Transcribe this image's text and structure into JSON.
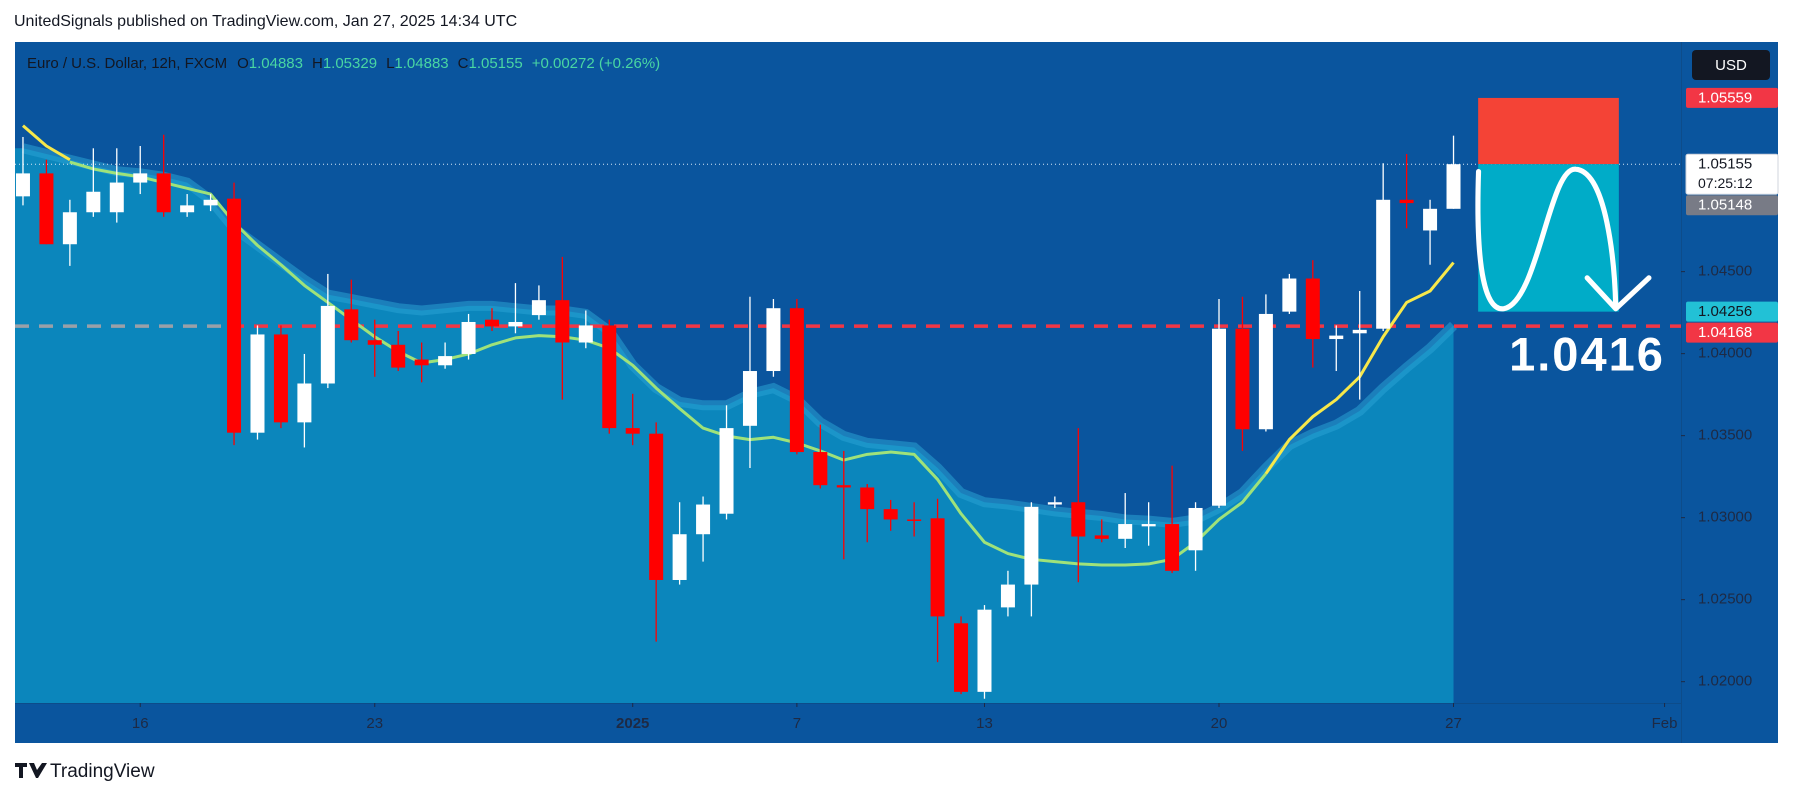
{
  "header": {
    "title": "UnitedSignals published on TradingView.com, Jan 27, 2025 14:34 UTC"
  },
  "footer": {
    "brand": "TradingView"
  },
  "chart_data": {
    "type": "candlestick",
    "currency_button": "USD",
    "legend": {
      "symbol": "Euro / U.S. Dollar, 12h, FXCM",
      "letters": [
        "O",
        "H",
        "L",
        "C"
      ],
      "change": "+0.00272 (+0.26%)"
    },
    "xlim": [
      -0.34,
      70.7
    ],
    "xticks": [
      {
        "value": 5,
        "label": "16"
      },
      {
        "value": 15,
        "label": "23"
      },
      {
        "value": 26,
        "label": "2025"
      },
      {
        "value": 33,
        "label": "7"
      },
      {
        "value": 41,
        "label": "13"
      },
      {
        "value": 51,
        "label": "20"
      },
      {
        "value": 61,
        "label": "27"
      },
      {
        "value": 70,
        "label": "Feb"
      }
    ],
    "ylim": [
      1.0187,
      1.059
    ],
    "yticks": [
      {
        "value": 1.02,
        "label": "1.02000"
      },
      {
        "value": 1.025,
        "label": "1.02500"
      },
      {
        "value": 1.03,
        "label": "1.03000"
      },
      {
        "value": 1.035,
        "label": "1.03500"
      },
      {
        "value": 1.04,
        "label": "1.04000"
      },
      {
        "value": 1.045,
        "label": "1.04500"
      }
    ],
    "up_color": "#ffffff",
    "down_color": "#ff0000",
    "ohlc": {
      "open": [
        1.04959,
        1.05099,
        1.04667,
        1.04862,
        1.04862,
        1.05043,
        1.05099,
        1.04862,
        1.04904,
        1.04945,
        1.03518,
        1.04117,
        1.03581,
        1.03818,
        1.0427,
        1.04082,
        1.04054,
        1.03964,
        1.03929,
        1.03998,
        1.04207,
        1.04166,
        1.04235,
        1.04326,
        1.04068,
        1.04172,
        1.03546,
        1.03512,
        1.0262,
        1.02899,
        1.03024,
        1.0356,
        1.03894,
        1.04277,
        1.034,
        1.03198,
        1.03184,
        1.03052,
        1.02989,
        1.02996,
        1.02356,
        1.01938,
        1.02453,
        1.02592,
        1.0308,
        1.03094,
        1.02892,
        1.02871,
        1.02947,
        1.02961,
        1.02801,
        1.03073,
        1.04152,
        1.03539,
        1.04256,
        1.04458,
        1.04089,
        1.04124,
        1.04152,
        1.04938,
        1.04751,
        1.04883
      ],
      "high": [
        1.05321,
        1.05182,
        1.04938,
        1.05252,
        1.05252,
        1.05266,
        1.05335,
        1.04973,
        1.04973,
        1.05043,
        1.04172,
        1.04172,
        1.03998,
        1.04486,
        1.04451,
        1.04207,
        1.04138,
        1.04068,
        1.04068,
        1.04242,
        1.04277,
        1.0443,
        1.04416,
        1.0459,
        1.04263,
        1.04207,
        1.03755,
        1.03581,
        1.03094,
        1.03129,
        1.03685,
        1.04347,
        1.04333,
        1.04333,
        1.03567,
        1.03407,
        1.03205,
        1.03108,
        1.03094,
        1.03115,
        1.02398,
        1.02467,
        1.02676,
        1.03094,
        1.03129,
        1.03546,
        1.02989,
        1.0315,
        1.03094,
        1.03317,
        1.03094,
        1.04333,
        1.04347,
        1.04361,
        1.04486,
        1.0457,
        1.04172,
        1.04382,
        1.05161,
        1.05217,
        1.04938,
        1.05329
      ],
      "low": [
        1.04904,
        1.04667,
        1.04535,
        1.04834,
        1.04799,
        1.04973,
        1.04834,
        1.04834,
        1.04869,
        1.03442,
        1.03476,
        1.03546,
        1.03428,
        1.0379,
        1.04068,
        1.03859,
        1.03894,
        1.03825,
        1.03908,
        1.03964,
        1.04138,
        1.04124,
        1.04207,
        1.0372,
        1.04033,
        1.03512,
        1.03442,
        1.02244,
        1.02592,
        1.02732,
        1.02989,
        1.03303,
        1.03859,
        1.03386,
        1.03178,
        1.02746,
        1.0285,
        1.0292,
        1.02885,
        1.02119,
        1.01924,
        1.01896,
        1.02398,
        1.02398,
        1.03059,
        1.02606,
        1.0285,
        1.02815,
        1.02829,
        1.02662,
        1.02676,
        1.03059,
        1.03407,
        1.03525,
        1.04242,
        1.03915,
        1.03894,
        1.0372,
        1.04138,
        1.04764,
        1.04542,
        1.04883
      ],
      "close": [
        1.05099,
        1.04667,
        1.04862,
        1.04987,
        1.05043,
        1.05099,
        1.04862,
        1.04904,
        1.04938,
        1.03518,
        1.04117,
        1.03581,
        1.03818,
        1.04291,
        1.04082,
        1.04054,
        1.03915,
        1.03929,
        1.03985,
        1.04193,
        1.04166,
        1.04193,
        1.04326,
        1.04068,
        1.04172,
        1.03546,
        1.03512,
        1.0262,
        1.02899,
        1.0308,
        1.03546,
        1.03894,
        1.04277,
        1.034,
        1.03198,
        1.03184,
        1.03052,
        1.02989,
        1.02982,
        1.02398,
        1.01938,
        1.02439,
        1.02592,
        1.03066,
        1.03094,
        1.02885,
        1.02871,
        1.02961,
        1.02961,
        1.02676,
        1.03059,
        1.04152,
        1.03539,
        1.04242,
        1.04458,
        1.04089,
        1.0411,
        1.04145,
        1.04938,
        1.04918,
        1.04883,
        1.05155
      ]
    },
    "band": {
      "color": "#0b86bc",
      "line_color": "#2aa3d4",
      "values": [
        1.05252,
        1.05217,
        1.05182,
        1.05147,
        1.05112,
        1.05099,
        1.05078,
        1.05043,
        1.04938,
        1.04764,
        1.0466,
        1.04555,
        1.04451,
        1.0436,
        1.04333,
        1.04305,
        1.04277,
        1.04263,
        1.04277,
        1.04291,
        1.04291,
        1.04277,
        1.04263,
        1.04263,
        1.04242,
        1.04138,
        1.03929,
        1.0379,
        1.03706,
        1.03685,
        1.03685,
        1.03755,
        1.0379,
        1.0372,
        1.03581,
        1.03498,
        1.03456,
        1.03442,
        1.03428,
        1.03303,
        1.0315,
        1.03094,
        1.0308,
        1.03059,
        1.03038,
        1.03024,
        1.0301,
        1.02989,
        1.02982,
        1.02968,
        1.02989,
        1.03059,
        1.0315,
        1.03303,
        1.03442,
        1.03512,
        1.03567,
        1.03651,
        1.0379,
        1.03915,
        1.04033,
        1.04172
      ]
    },
    "lines": [
      {
        "color": "#9fe27a",
        "values": [
          null,
          null,
          1.05168,
          1.05126,
          1.05099,
          1.05078,
          1.05043,
          1.05008,
          1.04973,
          1.04799,
          1.0466,
          1.04542,
          1.04416,
          1.04312,
          1.04207,
          1.04103,
          1.04013,
          1.03943,
          1.03964,
          1.03998,
          1.04054,
          1.04096,
          1.0411,
          1.04103,
          1.04082,
          1.04033,
          1.03929,
          1.0379,
          1.03665,
          1.03546,
          1.03498,
          1.03476,
          1.0349,
          1.03456,
          1.03407,
          1.03351,
          1.03386,
          1.034,
          1.03386,
          1.03233,
          1.03024,
          1.0285,
          1.02781,
          1.02746,
          1.02732,
          1.02718,
          1.02711,
          1.02711,
          1.02718,
          1.02746,
          1.0285,
          1.02989,
          1.03094,
          1.03268,
          null,
          null,
          null,
          null,
          null,
          null,
          null,
          null
        ]
      },
      {
        "color": "#f7e84a",
        "values": [
          1.0539,
          1.05266,
          1.05182,
          null,
          null,
          null,
          null,
          null,
          null,
          null,
          null,
          null,
          null,
          null,
          null,
          null,
          null,
          null,
          null,
          null,
          null,
          null,
          null,
          null,
          null,
          null,
          null,
          null,
          null,
          null,
          null,
          null,
          null,
          null,
          null,
          null,
          null,
          null,
          null,
          null,
          null,
          null,
          null,
          null,
          null,
          null,
          null,
          null,
          null,
          null,
          null,
          null,
          null,
          1.03268,
          1.03476,
          1.03616,
          1.0372,
          1.03859,
          1.04103,
          1.04312,
          1.04382,
          1.04555
        ]
      }
    ],
    "price_labels": [
      {
        "value": 1.05559,
        "color": "#f23645",
        "text_color": "#ffffff"
      },
      {
        "value": 1.05155,
        "color": "#ffffff",
        "text_color": "#131722",
        "countdown": "07:25:12"
      },
      {
        "value": 1.05148,
        "color": "#787b86",
        "text_color": "#ffffff"
      },
      {
        "value": 1.04256,
        "color": "#22c1d6",
        "text_color": "#131722"
      },
      {
        "value": 1.04168,
        "color": "#f23645",
        "text_color": "#ffffff"
      }
    ],
    "position": {
      "stop_color": "#f44336",
      "target_color": "#00acc8"
    },
    "annotation": "1.0416"
  }
}
